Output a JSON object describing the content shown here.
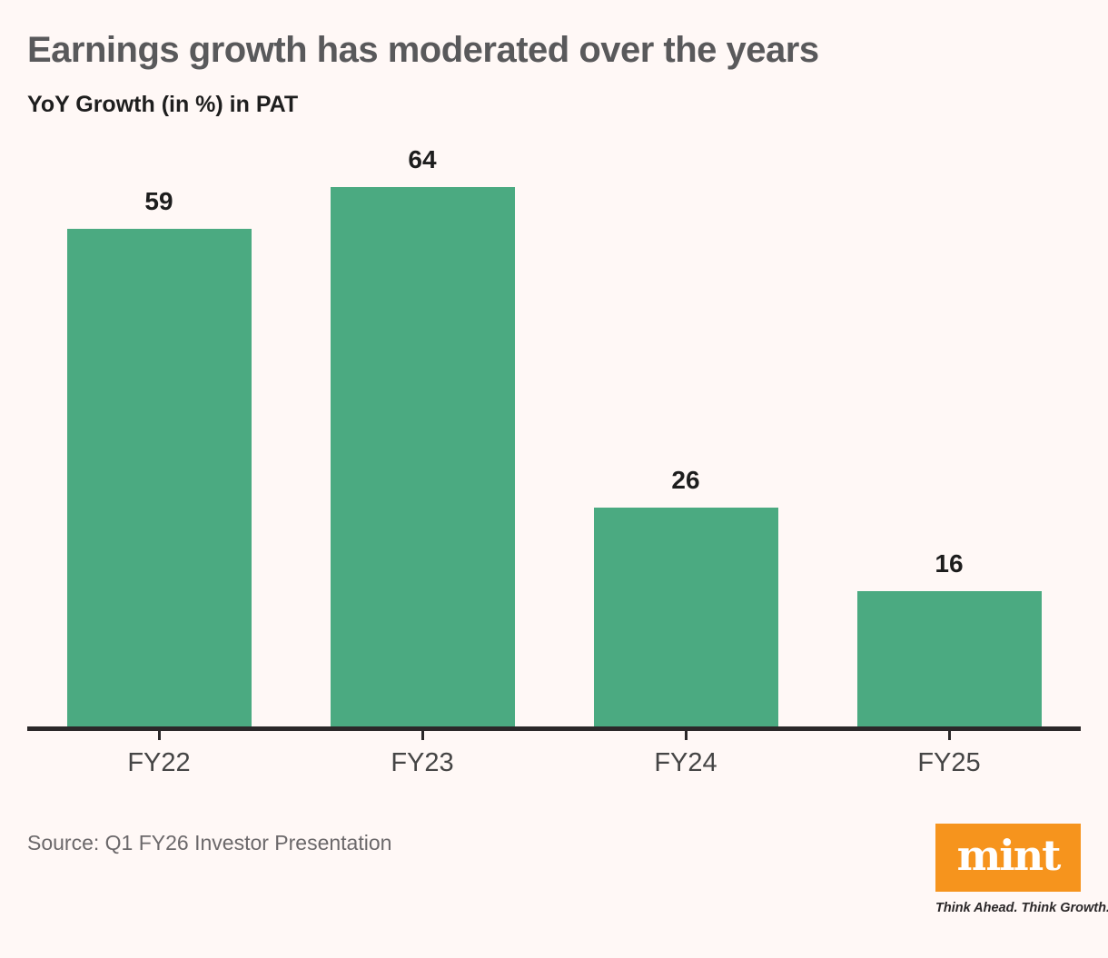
{
  "page": {
    "background_color": "#FFF8F6"
  },
  "header": {
    "title": "Earnings growth has moderated over the years",
    "subtitle": "YoY Growth (in %) in PAT"
  },
  "chart_data": {
    "type": "bar",
    "title": "Earnings growth has moderated over the years",
    "subtitle": "YoY Growth (in %) in PAT",
    "categories": [
      "FY22",
      "FY23",
      "FY24",
      "FY25"
    ],
    "values": [
      59,
      64,
      26,
      16
    ],
    "xlabel": "",
    "ylabel": "YoY Growth (in %) in PAT",
    "ylim": [
      0,
      70
    ],
    "grid": false,
    "legend": "none",
    "value_labels_shown": true,
    "bar_color": "#4BAA81",
    "axis_color": "#2B2829"
  },
  "footer": {
    "source": "Source: Q1 FY26 Investor Presentation",
    "logo": {
      "wordmark": "mint",
      "tagline": "Think Ahead. Think Growth.",
      "brand_color": "#F6941D"
    }
  }
}
